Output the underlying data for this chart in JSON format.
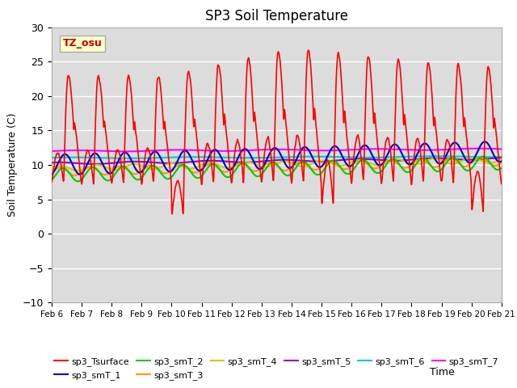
{
  "title": "SP3 Soil Temperature",
  "xlabel": "Time",
  "ylabel": "Soil Temperature (C)",
  "ylim": [
    -10,
    30
  ],
  "xlim": [
    0,
    15
  ],
  "bg_color": "#dcdcdc",
  "fig_color": "#ffffff",
  "grid_color": "#ffffff",
  "annotation_text": "TZ_osu",
  "annotation_bg": "#ffffcc",
  "annotation_border": "#aaaaaa",
  "annotation_color": "#cc0000",
  "series_colors": {
    "sp3_Tsurface": "#ff0000",
    "sp3_smT_1": "#0000cc",
    "sp3_smT_2": "#00cc00",
    "sp3_smT_3": "#ff9900",
    "sp3_smT_4": "#cccc00",
    "sp3_smT_5": "#9900cc",
    "sp3_smT_6": "#00cccc",
    "sp3_smT_7": "#ff00ff"
  },
  "xtick_labels": [
    "Feb 6",
    "Feb 7",
    "Feb 8",
    "Feb 9",
    "Feb 10",
    "Feb 11",
    "Feb 12",
    "Feb 13",
    "Feb 14",
    "Feb 15",
    "Feb 16",
    "Feb 17",
    "Feb 18",
    "Feb 19",
    "Feb 20",
    "Feb 21"
  ],
  "xtick_positions": [
    0,
    1,
    2,
    3,
    4,
    5,
    6,
    7,
    8,
    9,
    10,
    11,
    12,
    13,
    14,
    15
  ]
}
